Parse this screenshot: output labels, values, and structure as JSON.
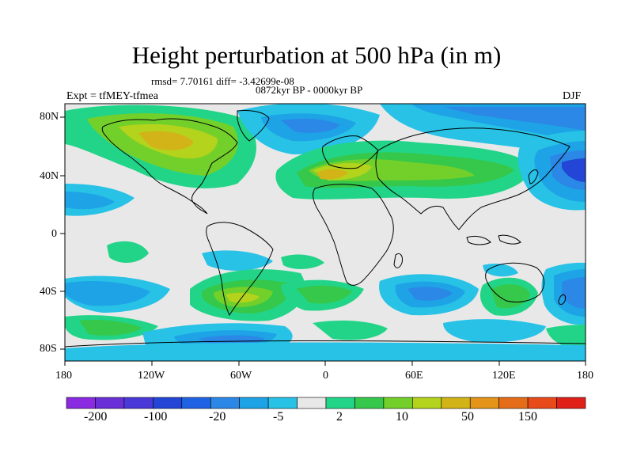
{
  "title": "Height perturbation at 500 hPa (in m)",
  "stats": "rmsd= 7.70161 diff= -3.42699e-08",
  "period": "0872kyr BP - 0000kyr BP",
  "experiment": "Expt = tfMEY-tfmea",
  "season": "DJF",
  "lat_ticks": [
    "80N",
    "40N",
    "0",
    "40S",
    "80S"
  ],
  "lon_ticks": [
    "180",
    "120W",
    "60W",
    "0",
    "60E",
    "120E",
    "180"
  ],
  "colorbar": {
    "colors": [
      "#8a2be2",
      "#6a2fd6",
      "#4b38d8",
      "#2346d6",
      "#1f63e4",
      "#2b88e6",
      "#1ea3e6",
      "#27c2e6",
      "#e8e8e8",
      "#22d488",
      "#35c84a",
      "#73d02a",
      "#b4d31c",
      "#d2b419",
      "#e39419",
      "#e56d19",
      "#e84a19",
      "#e01f19"
    ],
    "labels": [
      "-200",
      "-100",
      "-20",
      "-5",
      "2",
      "10",
      "50",
      "150"
    ]
  },
  "colors": {
    "neutral": "#e8e8e8",
    "coast": "#000000"
  }
}
